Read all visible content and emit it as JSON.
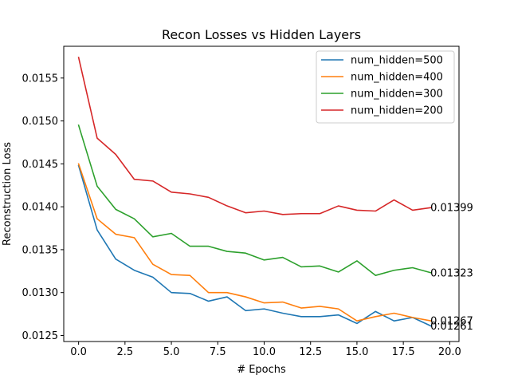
{
  "chart_data": {
    "type": "line",
    "title": "Recon Losses vs Hidden Layers",
    "xlabel": "# Epochs",
    "ylabel": "Reconstruction Loss",
    "xlim": [
      -0.8,
      20.5
    ],
    "ylim": [
      0.01243,
      0.01587
    ],
    "xticks": [
      0.0,
      2.5,
      5.0,
      7.5,
      10.0,
      12.5,
      15.0,
      17.5,
      20.0
    ],
    "xtick_labels": [
      "0.0",
      "2.5",
      "5.0",
      "7.5",
      "10.0",
      "12.5",
      "15.0",
      "17.5",
      "20.0"
    ],
    "yticks": [
      0.0125,
      0.013,
      0.0135,
      0.014,
      0.0145,
      0.015,
      0.0155
    ],
    "ytick_labels": [
      "0.0125",
      "0.0130",
      "0.0135",
      "0.0140",
      "0.0145",
      "0.0150",
      "0.0155"
    ],
    "grid": false,
    "legend_position": "top-right",
    "x": [
      0,
      1,
      2,
      3,
      4,
      5,
      6,
      7,
      8,
      9,
      10,
      11,
      12,
      13,
      14,
      15,
      16,
      17,
      18,
      19
    ],
    "series": [
      {
        "name": "num_hidden=500",
        "color": "#1f77b4",
        "values": [
          0.01448,
          0.01373,
          0.01339,
          0.01326,
          0.01318,
          0.013,
          0.01299,
          0.0129,
          0.01295,
          0.01279,
          0.01281,
          0.01276,
          0.01272,
          0.01272,
          0.01274,
          0.01264,
          0.01278,
          0.01267,
          0.01271,
          0.01261
        ],
        "end_label": "0.01261"
      },
      {
        "name": "num_hidden=400",
        "color": "#ff7f0e",
        "values": [
          0.0145,
          0.01386,
          0.01368,
          0.01364,
          0.01333,
          0.01321,
          0.0132,
          0.013,
          0.013,
          0.01295,
          0.01288,
          0.01289,
          0.01282,
          0.01284,
          0.01281,
          0.01267,
          0.01272,
          0.01276,
          0.01271,
          0.01267
        ],
        "end_label": "0.01267"
      },
      {
        "name": "num_hidden=300",
        "color": "#2ca02c",
        "values": [
          0.01495,
          0.01424,
          0.01397,
          0.01386,
          0.01365,
          0.01369,
          0.01354,
          0.01354,
          0.01348,
          0.01346,
          0.01338,
          0.01341,
          0.0133,
          0.01331,
          0.01324,
          0.01337,
          0.0132,
          0.01326,
          0.01329,
          0.01323
        ],
        "end_label": "0.01323"
      },
      {
        "name": "num_hidden=200",
        "color": "#d62728",
        "values": [
          0.01574,
          0.0148,
          0.01461,
          0.01432,
          0.0143,
          0.01417,
          0.01415,
          0.01411,
          0.01401,
          0.01393,
          0.01395,
          0.01391,
          0.01392,
          0.01392,
          0.01401,
          0.01396,
          0.01395,
          0.01408,
          0.01396,
          0.01399
        ],
        "end_label": "0.01399"
      }
    ]
  }
}
